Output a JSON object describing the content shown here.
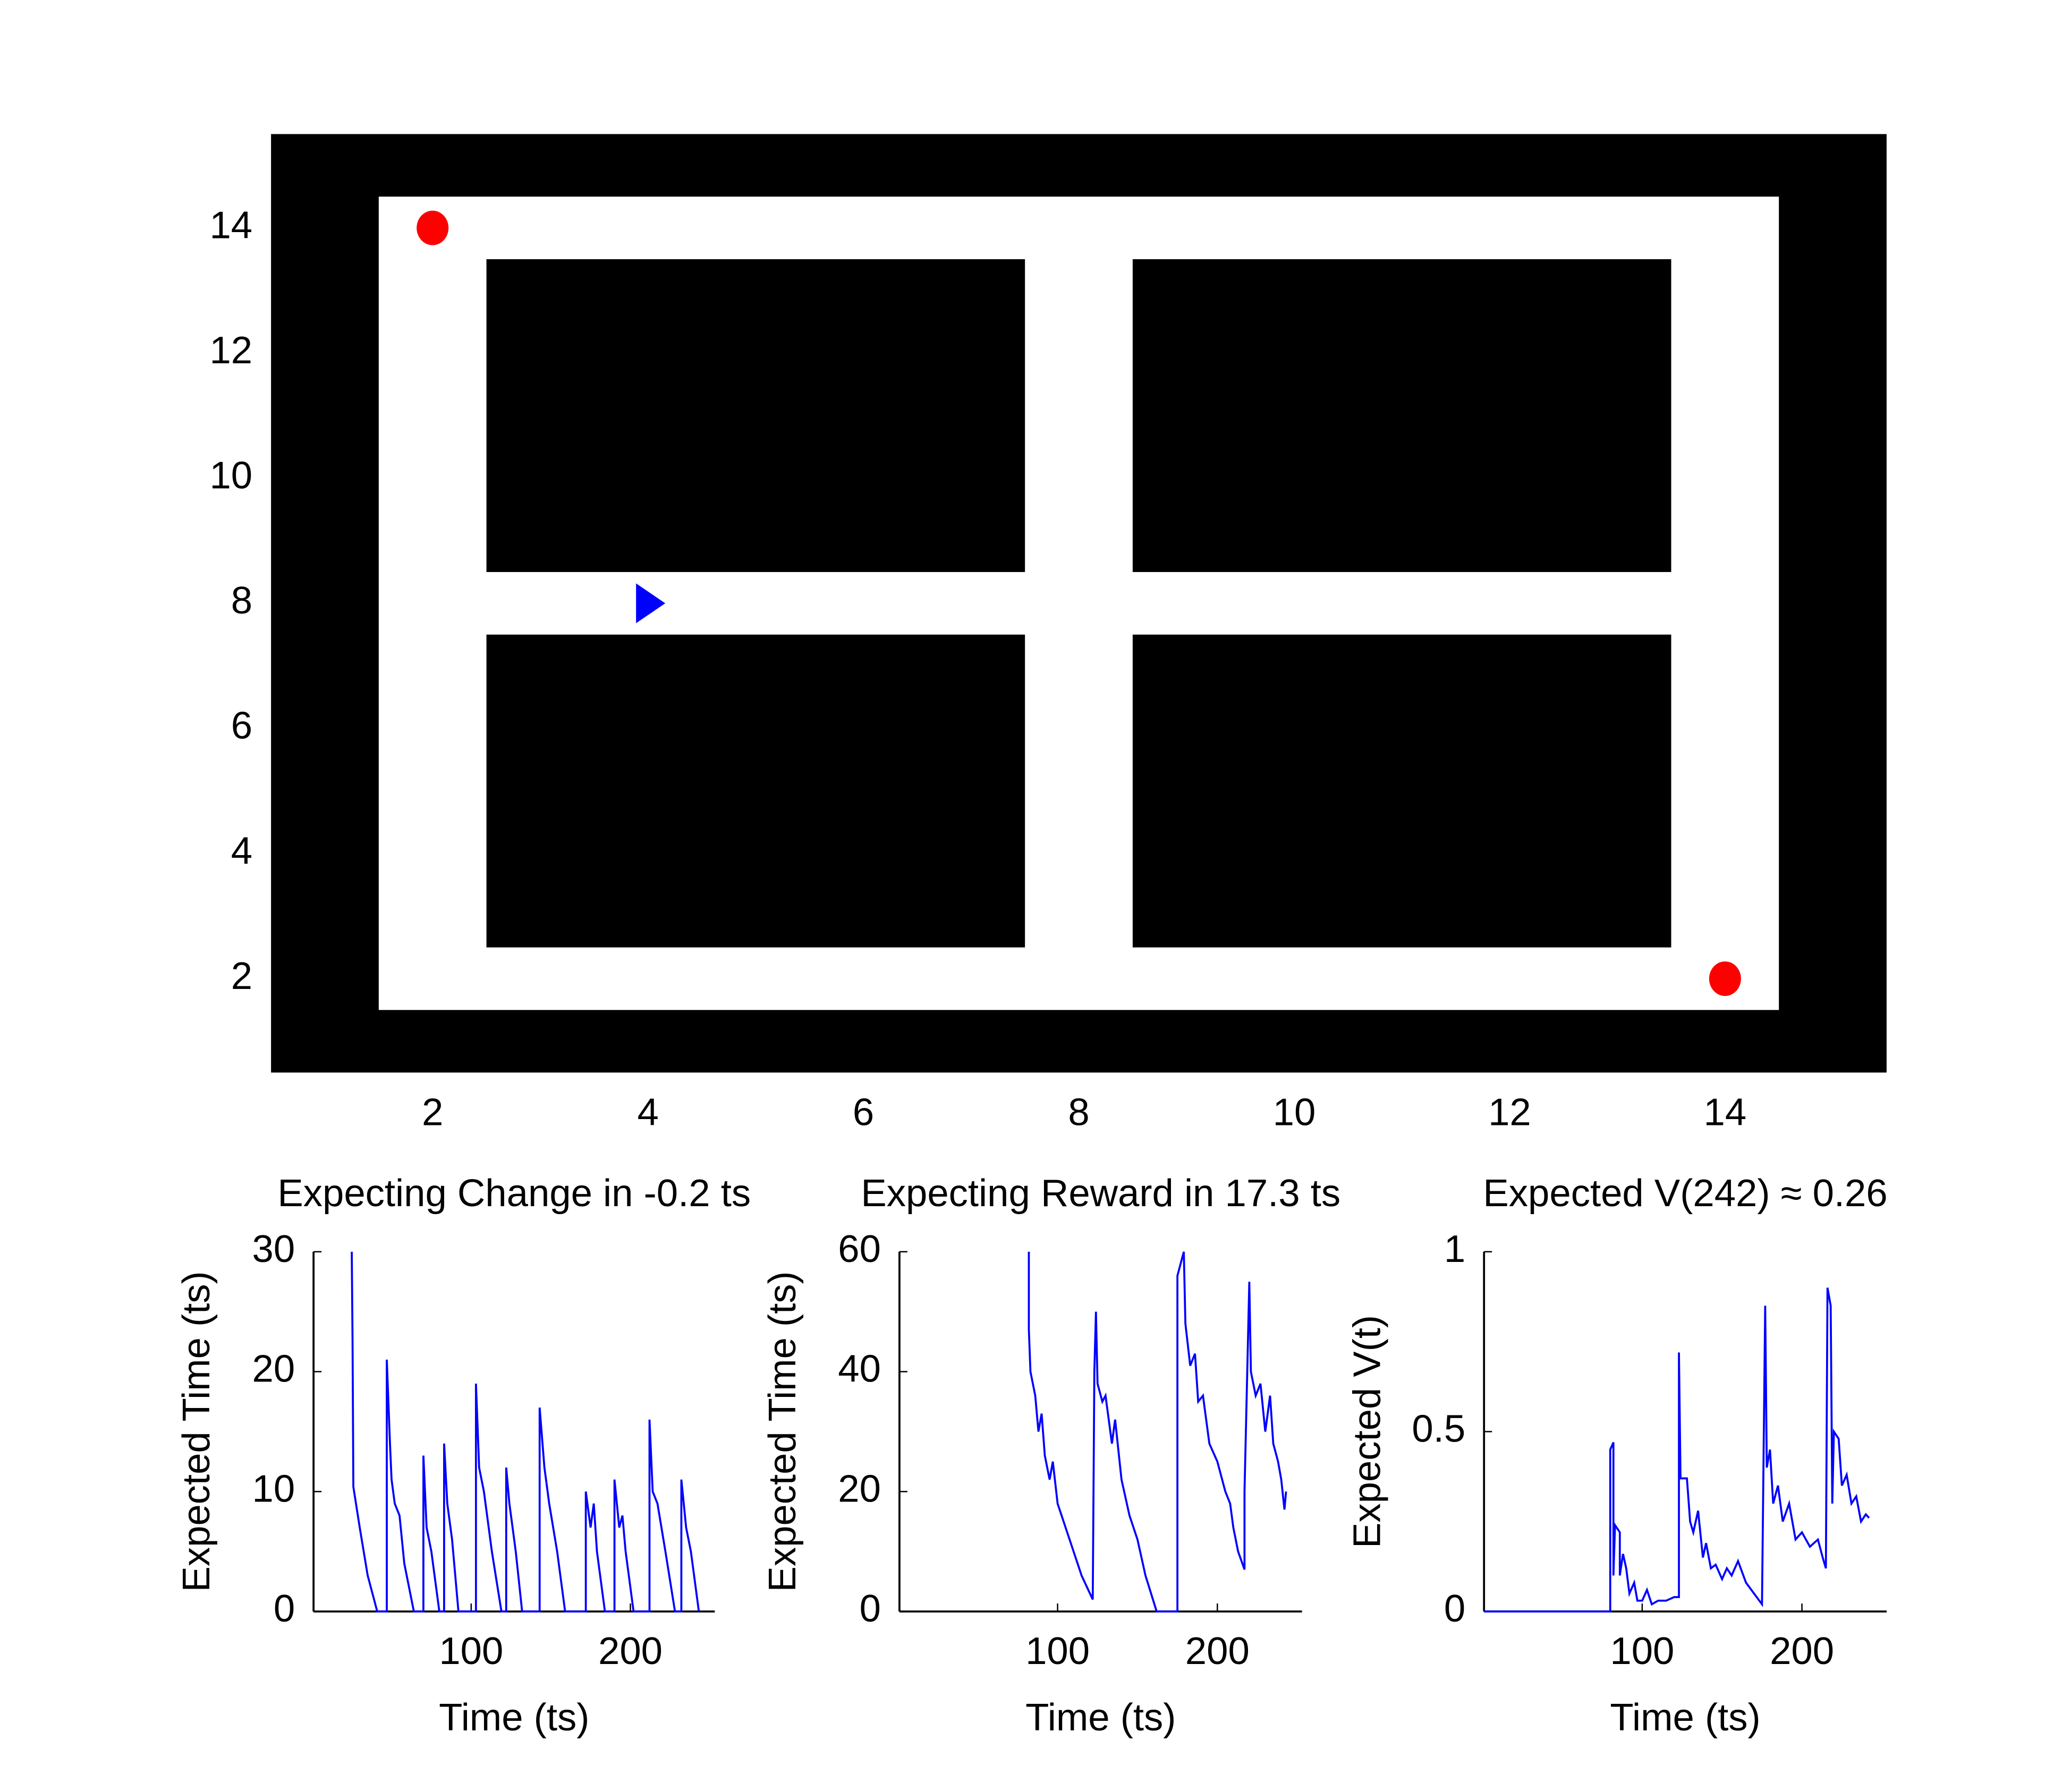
{
  "chart_data": [
    {
      "type": "gridworld",
      "xlim": [
        0.5,
        15.5
      ],
      "ylim": [
        0.5,
        15.5
      ],
      "xticks": [
        2,
        4,
        6,
        8,
        10,
        12,
        14
      ],
      "yticks": [
        2,
        4,
        6,
        8,
        10,
        12,
        14
      ],
      "free_area": [
        1.5,
        14.5,
        1.5,
        14.5
      ],
      "obstacles": [
        [
          2.5,
          7.5,
          8.5,
          13.5
        ],
        [
          8.5,
          13.5,
          8.5,
          13.5
        ],
        [
          2.5,
          7.5,
          2.5,
          7.5
        ],
        [
          8.5,
          13.5,
          2.5,
          7.5
        ]
      ],
      "rewards": {
        "x": [
          2,
          14
        ],
        "y": [
          14,
          2
        ],
        "color": "#ff0000"
      },
      "agent": {
        "x": 4,
        "y": 8,
        "color": "#0000ff"
      }
    },
    {
      "type": "line",
      "title": "Expecting Change in -0.2 ts",
      "xlabel": "Time (ts)",
      "ylabel": "Expected Time (ts)",
      "xlim": [
        1,
        253
      ],
      "xticks": [
        100,
        200
      ],
      "ylim": [
        0,
        30
      ],
      "yticks": [
        0,
        10,
        20,
        30
      ],
      "x": [
        25,
        25.5,
        26,
        30,
        35,
        41,
        47,
        47,
        49,
        50,
        52,
        55,
        58,
        64,
        70,
        70,
        72,
        75,
        80,
        83,
        83,
        85,
        88,
        92,
        103,
        103,
        105,
        108,
        113,
        119,
        122,
        122,
        124,
        128,
        132,
        143,
        143,
        146,
        149,
        154,
        159,
        172,
        172,
        175,
        177,
        179,
        184,
        190,
        190,
        193,
        195,
        197,
        202,
        212,
        212,
        214,
        217,
        222,
        228,
        232,
        232,
        235,
        238,
        243
      ],
      "series": [
        {
          "color": "#0000ff",
          "values": [
            30,
            22.5,
            10.4,
            7,
            3,
            0,
            0,
            21,
            14,
            11,
            9,
            8,
            4,
            0,
            0,
            13,
            7,
            5,
            0,
            0,
            14,
            9,
            6,
            0,
            0,
            19,
            12,
            10,
            5,
            0,
            0,
            12,
            9,
            5,
            0,
            0,
            17,
            12,
            9,
            5,
            0,
            0,
            10,
            7,
            9,
            5,
            0,
            0,
            11,
            7,
            8,
            5,
            0,
            0,
            16,
            10,
            9,
            5,
            0,
            0,
            11,
            7,
            5,
            0
          ]
        }
      ]
    },
    {
      "type": "line",
      "title": "Expecting Reward in 17.3 ts",
      "xlabel": "Time (ts)",
      "ylabel": "Expected Time (ts)",
      "xlim": [
        1,
        253
      ],
      "xticks": [
        100,
        200
      ],
      "ylim": [
        0,
        60
      ],
      "yticks": [
        0,
        20,
        40,
        60
      ],
      "x": [
        82,
        82,
        83,
        86,
        88,
        90,
        92,
        95,
        97,
        100,
        105,
        110,
        115,
        122,
        123,
        124,
        125,
        128,
        130,
        134,
        136,
        140,
        145,
        150,
        155,
        162,
        175,
        175,
        179,
        180,
        183,
        186,
        188,
        191,
        195,
        200,
        205,
        208,
        210,
        213,
        217,
        217,
        220,
        221,
        224,
        227,
        230,
        233,
        235,
        238,
        240,
        242,
        243
      ],
      "series": [
        {
          "color": "#0000ff",
          "values": [
            60,
            47,
            40,
            36,
            30,
            33,
            26,
            22,
            25,
            18,
            14,
            10,
            6,
            2,
            40,
            50,
            38,
            35,
            36,
            28,
            32,
            22,
            16,
            12,
            6,
            0,
            0,
            56,
            60,
            48,
            41,
            43,
            35,
            36,
            28,
            25,
            20,
            18,
            14,
            10,
            7,
            20,
            55,
            40,
            36,
            38,
            30,
            36,
            28,
            25,
            22,
            17,
            20
          ]
        }
      ]
    },
    {
      "type": "line",
      "title": "Expected V(242) ≈ 0.26",
      "xlabel": "Time (ts)",
      "ylabel": "Expected V(t)",
      "xlim": [
        1,
        253
      ],
      "xticks": [
        100,
        200
      ],
      "ylim": [
        0,
        1
      ],
      "yticks": [
        0,
        0.5,
        1
      ],
      "x": [
        1,
        80,
        80,
        82,
        82,
        83,
        86,
        86,
        88,
        90,
        92,
        95,
        97,
        100,
        103,
        106,
        110,
        115,
        120,
        123,
        123,
        124,
        128,
        130,
        132,
        135,
        138,
        140,
        143,
        146,
        150,
        153,
        156,
        160,
        165,
        170,
        175,
        177,
        178,
        180,
        182,
        185,
        188,
        192,
        196,
        200,
        205,
        210,
        213,
        215,
        216,
        218,
        219,
        220,
        223,
        225,
        228,
        231,
        234,
        237,
        240,
        242
      ],
      "series": [
        {
          "color": "#0000ff",
          "values": [
            0,
            0,
            0.45,
            0.47,
            0.1,
            0.24,
            0.22,
            0.1,
            0.16,
            0.12,
            0.05,
            0.08,
            0.03,
            0.03,
            0.06,
            0.02,
            0.03,
            0.03,
            0.04,
            0.04,
            0.72,
            0.37,
            0.37,
            0.25,
            0.22,
            0.28,
            0.15,
            0.19,
            0.12,
            0.13,
            0.09,
            0.12,
            0.1,
            0.14,
            0.08,
            0.05,
            0.02,
            0.85,
            0.4,
            0.45,
            0.3,
            0.35,
            0.25,
            0.3,
            0.2,
            0.22,
            0.18,
            0.2,
            0.15,
            0.12,
            0.9,
            0.85,
            0.3,
            0.5,
            0.48,
            0.35,
            0.38,
            0.3,
            0.32,
            0.25,
            0.27,
            0.26
          ]
        }
      ]
    }
  ]
}
